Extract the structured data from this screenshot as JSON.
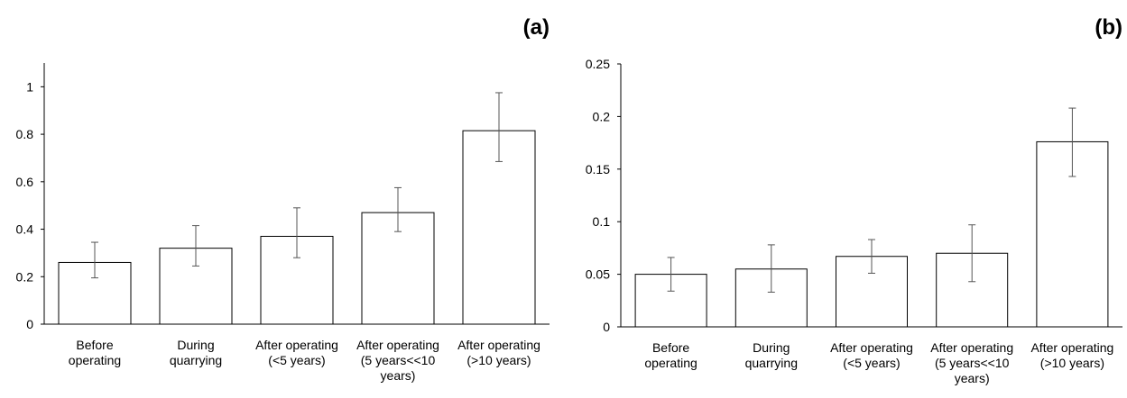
{
  "chart_data": [
    {
      "type": "bar",
      "panel_label": "(a)",
      "categories": [
        [
          "Before",
          "operating"
        ],
        [
          "During",
          "quarrying"
        ],
        [
          "After operating",
          "(<5 years)"
        ],
        [
          "After operating",
          "(5 years<<10",
          "years)"
        ],
        [
          "After operating",
          "(>10 years)"
        ]
      ],
      "values": [
        0.26,
        0.32,
        0.37,
        0.47,
        0.815
      ],
      "error_low": [
        0.195,
        0.245,
        0.28,
        0.39,
        0.685
      ],
      "error_high": [
        0.345,
        0.415,
        0.49,
        0.575,
        0.975
      ],
      "ylim": [
        0,
        1.1
      ],
      "yticks": [
        0,
        0.2,
        0.4,
        0.6,
        0.8,
        1
      ],
      "ytick_labels": [
        "0",
        "0.2",
        "0.4",
        "0.6",
        "0.8",
        "1"
      ],
      "bar_fill": "#ffffff",
      "bar_stroke": "#000000",
      "error_color": "#555555",
      "grid": false
    },
    {
      "type": "bar",
      "panel_label": "(b)",
      "categories": [
        [
          "Before",
          "operating"
        ],
        [
          "During",
          "quarrying"
        ],
        [
          "After operating",
          "(<5 years)"
        ],
        [
          "After operating",
          "(5 years<<10",
          "years)"
        ],
        [
          "After operating",
          "(>10 years)"
        ]
      ],
      "values": [
        0.05,
        0.055,
        0.067,
        0.07,
        0.176
      ],
      "error_low": [
        0.034,
        0.033,
        0.051,
        0.043,
        0.143
      ],
      "error_high": [
        0.066,
        0.078,
        0.083,
        0.097,
        0.208
      ],
      "ylim": [
        0,
        0.25
      ],
      "yticks": [
        0,
        0.05,
        0.1,
        0.15,
        0.2,
        0.25
      ],
      "ytick_labels": [
        "0",
        "0.05",
        "0.1",
        "0.15",
        "0.2",
        "0.25"
      ],
      "bar_fill": "#ffffff",
      "bar_stroke": "#000000",
      "error_color": "#555555",
      "grid": false
    }
  ]
}
